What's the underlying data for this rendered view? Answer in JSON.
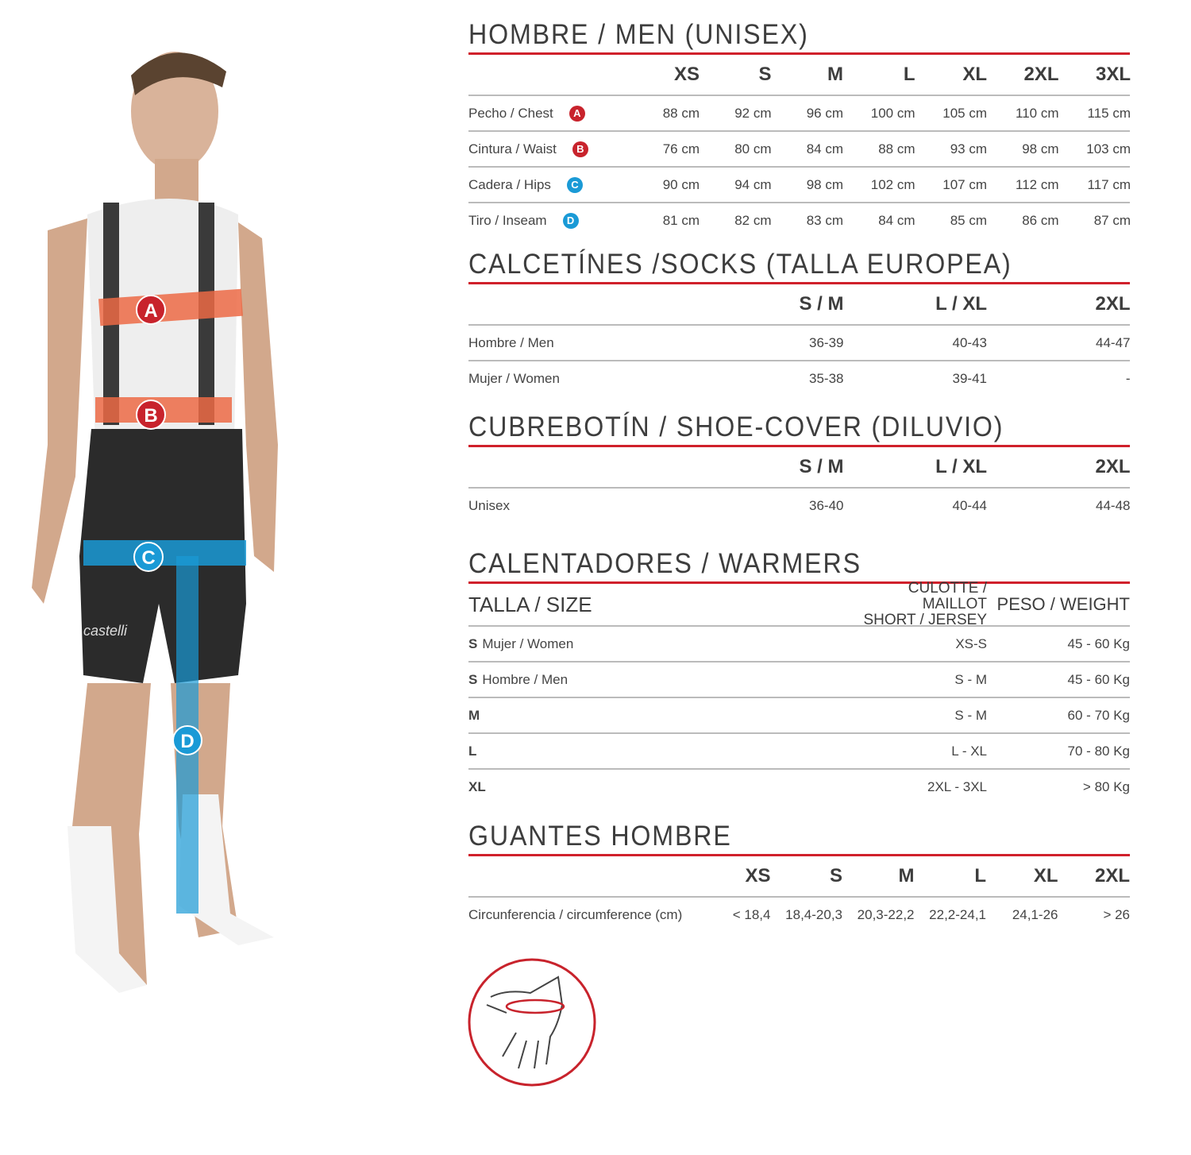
{
  "colors": {
    "accent": "#d0202b",
    "badge_red": "#c8232c",
    "badge_blue": "#1a9ad6"
  },
  "figure": {
    "markers": [
      "A",
      "B",
      "C",
      "D"
    ],
    "logo": "castelli"
  },
  "men": {
    "title": "HOMBRE / MEN (UNISEX)",
    "sizes": [
      "XS",
      "S",
      "M",
      "L",
      "XL",
      "2XL",
      "3XL"
    ],
    "rows": [
      {
        "label": "Pecho / Chest",
        "badge": "A",
        "badge_color": "#c8232c",
        "values": [
          "88 cm",
          "92 cm",
          "96 cm",
          "100 cm",
          "105 cm",
          "110 cm",
          "115 cm"
        ]
      },
      {
        "label": "Cintura / Waist",
        "badge": "B",
        "badge_color": "#c8232c",
        "values": [
          "76 cm",
          "80 cm",
          "84 cm",
          "88 cm",
          "93 cm",
          "98 cm",
          "103 cm"
        ]
      },
      {
        "label": "Cadera / Hips",
        "badge": "C",
        "badge_color": "#1a9ad6",
        "values": [
          "90 cm",
          "94 cm",
          "98 cm",
          "102 cm",
          "107 cm",
          "112 cm",
          "117 cm"
        ]
      },
      {
        "label": "Tiro / Inseam",
        "badge": "D",
        "badge_color": "#1a9ad6",
        "values": [
          "81 cm",
          "82 cm",
          "83 cm",
          "84 cm",
          "85 cm",
          "86 cm",
          "87 cm"
        ]
      }
    ]
  },
  "socks": {
    "title": "CALCETÍNES /SOCKS (TALLA EUROPEA)",
    "sizes": [
      "S / M",
      "L / XL",
      "2XL"
    ],
    "rows": [
      {
        "label": "Hombre / Men",
        "values": [
          "36-39",
          "40-43",
          "44-47"
        ]
      },
      {
        "label": "Mujer / Women",
        "values": [
          "35-38",
          "39-41",
          "-"
        ]
      }
    ]
  },
  "shoecover": {
    "title": "CUBREBOTÍN / SHOE-COVER (DILUVIO)",
    "sizes": [
      "S / M",
      "L / XL",
      "2XL"
    ],
    "rows": [
      {
        "label": "Unisex",
        "values": [
          "36-40",
          "40-44",
          "44-48"
        ]
      }
    ]
  },
  "warmers": {
    "title": "CALENTADORES / WARMERS",
    "size_header": "TALLA / SIZE",
    "col1_line1": "CULOTTE / MAILLOT",
    "col1_line2": "SHORT / JERSEY",
    "col2": "PESO / WEIGHT",
    "rows": [
      {
        "size": "S",
        "label": "Mujer / Women",
        "values": [
          "XS-S",
          "45 - 60 Kg"
        ]
      },
      {
        "size": "S",
        "label": "Hombre / Men",
        "values": [
          "S - M",
          "45 - 60 Kg"
        ]
      },
      {
        "size": "M",
        "label": "",
        "values": [
          "S - M",
          "60 - 70 Kg"
        ]
      },
      {
        "size": "L",
        "label": "",
        "values": [
          "L - XL",
          "70 - 80 Kg"
        ]
      },
      {
        "size": "XL",
        "label": "",
        "values": [
          "2XL - 3XL",
          "> 80 Kg"
        ]
      }
    ]
  },
  "gloves": {
    "title": "GUANTES HOMBRE",
    "sizes": [
      "XS",
      "S",
      "M",
      "L",
      "XL",
      "2XL"
    ],
    "rows": [
      {
        "label": "Circunferencia / circumference (cm)",
        "values": [
          "< 18,4",
          "18,4-20,3",
          "20,3-22,2",
          "22,2-24,1",
          "24,1-26",
          "> 26"
        ]
      }
    ]
  }
}
